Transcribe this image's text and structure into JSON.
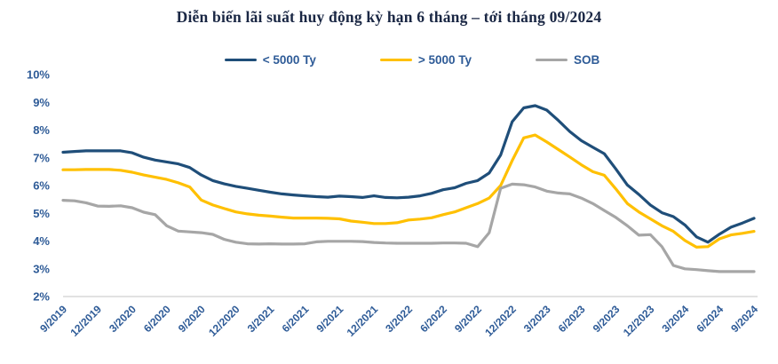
{
  "chart_data": {
    "type": "line",
    "title": "Diễn biến lãi suất huy động kỳ hạn 6 tháng – tới tháng 09/2024",
    "ylim": [
      2,
      10
    ],
    "grid": false,
    "legend_position": "top-center",
    "y_ticks": [
      "10%",
      "9%",
      "8%",
      "7%",
      "6%",
      "5%",
      "4%",
      "3%",
      "2%"
    ],
    "x": [
      "9/2019",
      "10/2019",
      "11/2019",
      "12/2019",
      "1/2020",
      "2/2020",
      "3/2020",
      "4/2020",
      "5/2020",
      "6/2020",
      "7/2020",
      "8/2020",
      "9/2020",
      "10/2020",
      "11/2020",
      "12/2020",
      "1/2021",
      "2/2021",
      "3/2021",
      "4/2021",
      "5/2021",
      "6/2021",
      "7/2021",
      "8/2021",
      "9/2021",
      "10/2021",
      "11/2021",
      "12/2021",
      "1/2022",
      "2/2022",
      "3/2022",
      "4/2022",
      "5/2022",
      "6/2022",
      "7/2022",
      "8/2022",
      "9/2022",
      "10/2022",
      "11/2022",
      "12/2022",
      "1/2023",
      "2/2023",
      "3/2023",
      "4/2023",
      "5/2023",
      "6/2023",
      "7/2023",
      "8/2023",
      "9/2023",
      "10/2023",
      "11/2023",
      "12/2023",
      "1/2024",
      "2/2024",
      "3/2024",
      "4/2024",
      "5/2024",
      "6/2024",
      "7/2024",
      "8/2024",
      "9/2024"
    ],
    "x_tick_labels": [
      "9/2019",
      "12/2019",
      "3/2020",
      "6/2020",
      "9/2020",
      "12/2020",
      "3/2021",
      "6/2021",
      "9/2021",
      "12/2021",
      "3/2022",
      "6/2022",
      "9/2022",
      "12/2022",
      "3/2023",
      "6/2023",
      "9/2023",
      "12/2023",
      "3/2024",
      "6/2024",
      "9/2024"
    ],
    "series": [
      {
        "name": "< 5000 Ty",
        "color": "#1F4E79",
        "values": [
          7.2,
          7.23,
          7.25,
          7.25,
          7.25,
          7.25,
          7.18,
          7.02,
          6.92,
          6.85,
          6.78,
          6.65,
          6.38,
          6.18,
          6.06,
          5.97,
          5.9,
          5.83,
          5.76,
          5.7,
          5.66,
          5.63,
          5.6,
          5.58,
          5.62,
          5.6,
          5.57,
          5.63,
          5.57,
          5.56,
          5.58,
          5.63,
          5.72,
          5.85,
          5.92,
          6.08,
          6.18,
          6.45,
          7.1,
          8.3,
          8.8,
          8.88,
          8.72,
          8.35,
          7.95,
          7.62,
          7.38,
          7.15,
          6.6,
          6.02,
          5.68,
          5.3,
          5.02,
          4.88,
          4.58,
          4.15,
          3.96,
          4.25,
          4.5,
          4.65,
          4.82
        ]
      },
      {
        "name": "> 5000 Ty",
        "color": "#FFC000",
        "values": [
          6.57,
          6.57,
          6.58,
          6.58,
          6.58,
          6.55,
          6.48,
          6.38,
          6.3,
          6.22,
          6.1,
          5.95,
          5.48,
          5.3,
          5.17,
          5.05,
          4.98,
          4.93,
          4.9,
          4.86,
          4.83,
          4.83,
          4.83,
          4.82,
          4.8,
          4.72,
          4.68,
          4.63,
          4.63,
          4.66,
          4.76,
          4.79,
          4.84,
          4.95,
          5.05,
          5.2,
          5.35,
          5.55,
          6.0,
          6.9,
          7.72,
          7.82,
          7.57,
          7.3,
          7.03,
          6.75,
          6.5,
          6.37,
          5.88,
          5.35,
          5.05,
          4.8,
          4.55,
          4.35,
          4.02,
          3.78,
          3.8,
          4.08,
          4.22,
          4.28,
          4.35
        ]
      },
      {
        "name": "SOB",
        "color": "#A6A6A6",
        "values": [
          5.47,
          5.45,
          5.38,
          5.26,
          5.25,
          5.27,
          5.2,
          5.04,
          4.95,
          4.55,
          4.36,
          4.33,
          4.3,
          4.24,
          4.06,
          3.96,
          3.9,
          3.89,
          3.9,
          3.89,
          3.89,
          3.9,
          3.97,
          3.99,
          3.99,
          3.99,
          3.98,
          3.95,
          3.93,
          3.92,
          3.92,
          3.92,
          3.92,
          3.93,
          3.93,
          3.92,
          3.8,
          4.3,
          5.9,
          6.05,
          6.03,
          5.95,
          5.8,
          5.73,
          5.7,
          5.55,
          5.35,
          5.1,
          4.85,
          4.55,
          4.21,
          4.23,
          3.8,
          3.12,
          3.0,
          2.97,
          2.93,
          2.9,
          2.9,
          2.9,
          2.9
        ]
      }
    ]
  },
  "styles": {
    "axis_label_color": "#2E5B97",
    "title_color": "#1A2744",
    "axis_line_color": "#D9D9D9",
    "background": "#FFFFFF"
  }
}
